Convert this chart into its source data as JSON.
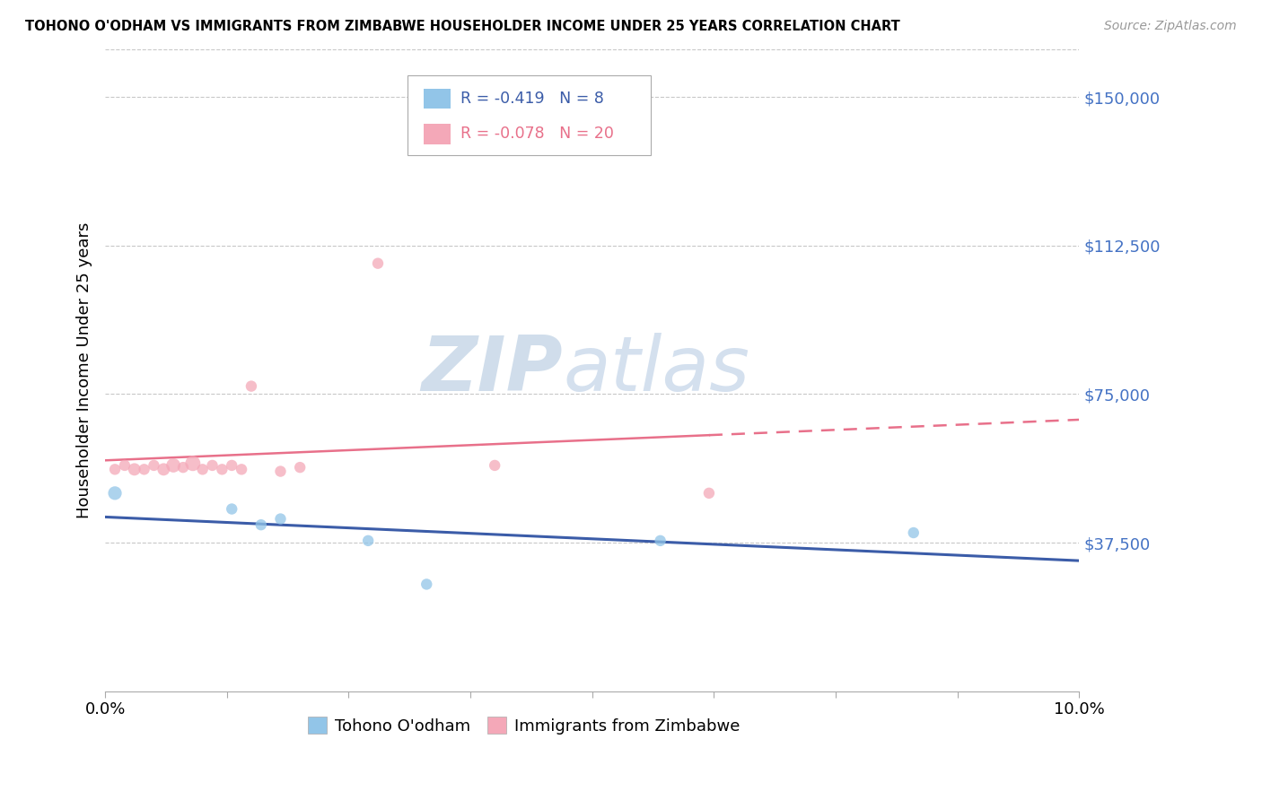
{
  "title": "TOHONO O'ODHAM VS IMMIGRANTS FROM ZIMBABWE HOUSEHOLDER INCOME UNDER 25 YEARS CORRELATION CHART",
  "source": "Source: ZipAtlas.com",
  "ylabel": "Householder Income Under 25 years",
  "legend_label1": "Tohono O'odham",
  "legend_label2": "Immigrants from Zimbabwe",
  "r1": -0.419,
  "n1": 8,
  "r2": -0.078,
  "n2": 20,
  "yticks": [
    0,
    37500,
    75000,
    112500,
    150000
  ],
  "ylim": [
    0,
    162000
  ],
  "xlim": [
    0.0,
    0.1
  ],
  "color_blue": "#92C5E8",
  "color_pink": "#F4A8B8",
  "color_blue_line": "#3B5CA8",
  "color_pink_line": "#E8708A",
  "watermark_zip": "ZIP",
  "watermark_atlas": "atlas",
  "blue_scatter_x": [
    0.001,
    0.013,
    0.016,
    0.018,
    0.027,
    0.033,
    0.057,
    0.083
  ],
  "blue_scatter_y": [
    50000,
    46000,
    42000,
    43500,
    38000,
    27000,
    38000,
    40000
  ],
  "blue_scatter_size": [
    120,
    80,
    80,
    80,
    80,
    80,
    80,
    80
  ],
  "pink_scatter_x": [
    0.001,
    0.002,
    0.003,
    0.004,
    0.005,
    0.006,
    0.007,
    0.008,
    0.009,
    0.01,
    0.011,
    0.012,
    0.013,
    0.014,
    0.015,
    0.018,
    0.02,
    0.028,
    0.04,
    0.062
  ],
  "pink_scatter_y": [
    56000,
    57000,
    56000,
    56000,
    57000,
    56000,
    57000,
    56500,
    57500,
    56000,
    57000,
    56000,
    57000,
    56000,
    77000,
    55500,
    56500,
    108000,
    57000,
    50000
  ],
  "pink_scatter_size": [
    80,
    80,
    100,
    80,
    80,
    100,
    130,
    80,
    150,
    80,
    80,
    80,
    80,
    80,
    80,
    80,
    80,
    80,
    80,
    80
  ],
  "xtick_positions": [
    0.0,
    0.0125,
    0.025,
    0.0375,
    0.05,
    0.0625,
    0.075,
    0.0875,
    0.1
  ],
  "xtick_show": [
    0.0,
    0.1
  ]
}
